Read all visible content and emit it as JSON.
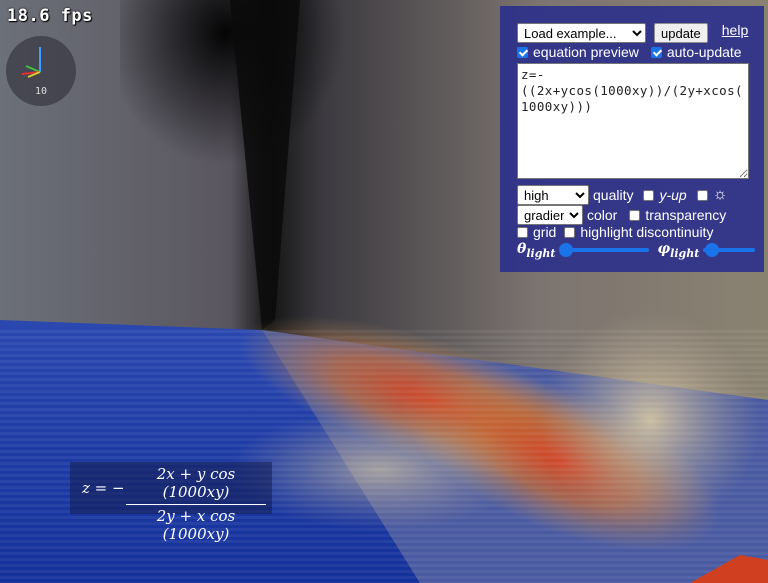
{
  "fps": "18.6 fps",
  "gizmo": {
    "label": "10",
    "axis_colors": [
      "#3aa0ff",
      "#40c040",
      "#e03030",
      "#d0d030"
    ]
  },
  "panel": {
    "example_select": {
      "selected": "Load example..."
    },
    "update_label": "update",
    "help_label": "help",
    "equation_preview": {
      "label": "equation preview",
      "checked": true
    },
    "auto_update": {
      "label": "auto-update",
      "checked": true
    },
    "equation": "z=-((2x+ycos(1000xy))/(2y+xcos(1000xy)))",
    "quality_select": {
      "selected": "high"
    },
    "quality_label": "quality",
    "y_up": {
      "label": "y-up",
      "checked": false
    },
    "light": {
      "icon": "sun-icon",
      "glyph": "☼",
      "checked": false
    },
    "color_select": {
      "selected": "gradient"
    },
    "color_label": "color",
    "transparency": {
      "label": "transparency",
      "checked": false
    },
    "grid": {
      "label": "grid",
      "checked": false
    },
    "highlight": {
      "label": "highlight discontinuity",
      "checked": false
    },
    "theta": {
      "symbol": "θ",
      "sub": "light"
    },
    "phi": {
      "symbol": "φ",
      "sub": "light"
    }
  },
  "formula": {
    "lhs": "z = −",
    "numerator": "2x + y cos (1000xy)",
    "denominator": "2y + x cos (1000xy)"
  },
  "colors": {
    "accent": "#1a73e8",
    "panel": "#282c8c",
    "surface_blue": "#1e3aa8",
    "surface_red": "#c83020"
  }
}
